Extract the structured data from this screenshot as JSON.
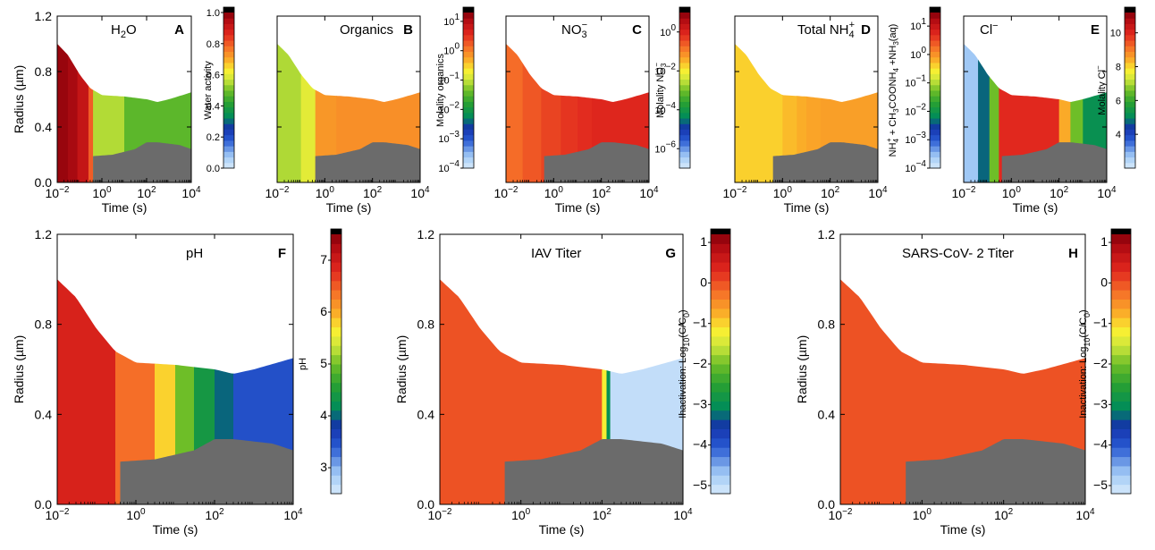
{
  "chart_data": [
    {
      "type": "heatmap",
      "panel": "A",
      "title": "H2O",
      "xlabel": "Time (s)",
      "ylabel": "Radius (µm)",
      "xscale": "log",
      "xlim": [
        0.01,
        10000
      ],
      "ylim": [
        0.0,
        1.2
      ],
      "xticks": [
        "10^-2",
        "10^0",
        "10^2",
        "10^4"
      ],
      "yticks": [
        "0.0",
        "0.4",
        "0.8",
        "1.2"
      ],
      "colorbar": {
        "label": "Water activity",
        "scale": "linear",
        "range": [
          0.0,
          1.0
        ],
        "ticks": [
          "0.0",
          "0.2",
          "0.4",
          "0.6",
          "0.8",
          "1.0"
        ]
      },
      "regions": [
        {
          "t_start": 0.01,
          "t_end": 0.03,
          "value": 0.98
        },
        {
          "t_start": 0.03,
          "t_end": 0.08,
          "value": 0.96
        },
        {
          "t_start": 0.08,
          "t_end": 0.25,
          "value": 0.92
        },
        {
          "t_start": 0.25,
          "t_end": 0.4,
          "value": 0.8
        },
        {
          "t_start": 0.4,
          "t_end": 10,
          "value": 0.55
        },
        {
          "t_start": 10,
          "t_end": 10000,
          "value": 0.48
        }
      ]
    },
    {
      "type": "heatmap",
      "panel": "B",
      "title": "Organics",
      "xlabel": "Time (s)",
      "ylabel": "",
      "xscale": "log",
      "xlim": [
        0.01,
        10000
      ],
      "ylim": [
        0.0,
        1.2
      ],
      "xticks": [
        "10^-2",
        "10^0",
        "10^2",
        "10^4"
      ],
      "yticks": [],
      "colorbar": {
        "label": "Molality organics",
        "scale": "log",
        "range": [
          0.0001,
          20
        ],
        "ticks": [
          "10^-4",
          "10^-3",
          "10^-2",
          "10^-1",
          "10^0",
          "10^1"
        ]
      },
      "regions": [
        {
          "t_start": 0.01,
          "t_end": 0.1,
          "value": 0.08
        },
        {
          "t_start": 0.1,
          "t_end": 0.4,
          "value": 0.15
        },
        {
          "t_start": 0.4,
          "t_end": 3,
          "value": 0.7
        },
        {
          "t_start": 3,
          "t_end": 10000,
          "value": 0.8
        }
      ]
    },
    {
      "type": "heatmap",
      "panel": "C",
      "title": "NO3-",
      "xlabel": "Time (s)",
      "ylabel": "",
      "xscale": "log",
      "xlim": [
        0.01,
        10000
      ],
      "ylim": [
        0.0,
        1.2
      ],
      "xticks": [
        "10^-2",
        "10^0",
        "10^2",
        "10^4"
      ],
      "yticks": [],
      "colorbar": {
        "label": "Molality NO3-",
        "scale": "log",
        "range": [
          1e-07,
          10
        ],
        "ticks": [
          "10^-6",
          "10^-4",
          "10^-2",
          "10^0"
        ]
      },
      "regions": [
        {
          "t_start": 0.01,
          "t_end": 0.05,
          "value": 0.18
        },
        {
          "t_start": 0.05,
          "t_end": 0.3,
          "value": 0.28
        },
        {
          "t_start": 0.3,
          "t_end": 2,
          "value": 0.42
        },
        {
          "t_start": 2,
          "t_end": 10,
          "value": 0.58
        },
        {
          "t_start": 10,
          "t_end": 40,
          "value": 0.7
        },
        {
          "t_start": 40,
          "t_end": 10000,
          "value": 0.85
        }
      ]
    },
    {
      "type": "heatmap",
      "panel": "D",
      "title": "Total NH4+",
      "xlabel": "Time (s)",
      "ylabel": "",
      "xscale": "log",
      "xlim": [
        0.01,
        10000
      ],
      "ylim": [
        0.0,
        1.2
      ],
      "xticks": [
        "10^-2",
        "10^0",
        "10^2",
        "10^4"
      ],
      "yticks": [],
      "colorbar": {
        "label": "NH4+ + CH3COONH4 + NH3(aq)",
        "scale": "log",
        "range": [
          0.0001,
          30
        ],
        "ticks": [
          "10^-4",
          "10^-3",
          "10^-2",
          "10^-1",
          "10^0",
          "10^1"
        ]
      },
      "regions": [
        {
          "t_start": 0.01,
          "t_end": 1,
          "value": 0.42
        },
        {
          "t_start": 1,
          "t_end": 4,
          "value": 0.55
        },
        {
          "t_start": 4,
          "t_end": 10,
          "value": 0.66
        },
        {
          "t_start": 10,
          "t_end": 40,
          "value": 0.75
        },
        {
          "t_start": 40,
          "t_end": 10000,
          "value": 0.82
        }
      ]
    },
    {
      "type": "heatmap",
      "panel": "E",
      "title": "Cl-",
      "xlabel": "Time (s)",
      "ylabel": "",
      "xscale": "log",
      "xlim": [
        0.01,
        10000
      ],
      "ylim": [
        0.0,
        1.2
      ],
      "xticks": [
        "10^-2",
        "10^0",
        "10^2",
        "10^4"
      ],
      "yticks": [],
      "colorbar": {
        "label": "Molality Cl-",
        "scale": "linear",
        "range": [
          2,
          11.2
        ],
        "ticks": [
          "4",
          "6",
          "8",
          "10"
        ]
      },
      "regions": [
        {
          "t_start": 0.01,
          "t_end": 0.04,
          "value": 0.08
        },
        {
          "t_start": 0.04,
          "t_end": 0.12,
          "value": 0.3
        },
        {
          "t_start": 0.12,
          "t_end": 0.3,
          "value": 0.5
        },
        {
          "t_start": 0.3,
          "t_end": 100,
          "value": 0.86
        },
        {
          "t_start": 100,
          "t_end": 300,
          "value": 0.7
        },
        {
          "t_start": 300,
          "t_end": 1000,
          "value": 0.5
        },
        {
          "t_start": 1000,
          "t_end": 10000,
          "value": 0.35
        }
      ]
    },
    {
      "type": "heatmap",
      "panel": "F",
      "title": "pH",
      "xlabel": "Time (s)",
      "ylabel": "Radius (µm)",
      "xscale": "log",
      "xlim": [
        0.01,
        10000
      ],
      "ylim": [
        0.0,
        1.2
      ],
      "xticks": [
        "10^-2",
        "10^0",
        "10^2",
        "10^4"
      ],
      "yticks": [
        "0.0",
        "0.4",
        "0.8",
        "1.2"
      ],
      "colorbar": {
        "label": "pH",
        "scale": "linear",
        "range": [
          2.5,
          7.5
        ],
        "ticks": [
          "3",
          "4",
          "5",
          "6",
          "7"
        ]
      },
      "regions": [
        {
          "t_start": 0.01,
          "t_end": 0.3,
          "value": 6.9
        },
        {
          "t_start": 0.3,
          "t_end": 3,
          "value": 6.4
        },
        {
          "t_start": 3,
          "t_end": 10,
          "value": 5.8
        },
        {
          "t_start": 10,
          "t_end": 30,
          "value": 5.0
        },
        {
          "t_start": 30,
          "t_end": 100,
          "value": 4.4
        },
        {
          "t_start": 100,
          "t_end": 300,
          "value": 4.0
        },
        {
          "t_start": 300,
          "t_end": 10000,
          "value": 3.5
        }
      ]
    },
    {
      "type": "heatmap",
      "panel": "G",
      "title": "IAV Titer",
      "xlabel": "Time (s)",
      "ylabel": "Radius (µm)",
      "xscale": "log",
      "xlim": [
        0.01,
        10000
      ],
      "ylim": [
        0.0,
        1.2
      ],
      "xticks": [
        "10^-2",
        "10^0",
        "10^2",
        "10^4"
      ],
      "yticks": [
        "0.0",
        "0.4",
        "0.8",
        "1.2"
      ],
      "colorbar": {
        "label": "Inactivation: Log10(C/C0)",
        "scale": "linear",
        "range": [
          -5.2,
          1.2
        ],
        "ticks": [
          "1",
          "0",
          "-1",
          "-2",
          "-3",
          "-4",
          "-5"
        ]
      },
      "regions": [
        {
          "t_start": 0.01,
          "t_end": 100,
          "value": 0.0
        },
        {
          "t_start": 100,
          "t_end": 130,
          "value": -1.2
        },
        {
          "t_start": 130,
          "t_end": 160,
          "value": -3.0
        },
        {
          "t_start": 160,
          "t_end": 10000,
          "value": -5.0
        }
      ]
    },
    {
      "type": "heatmap",
      "panel": "H",
      "title": "SARS-CoV- 2 Titer",
      "xlabel": "Time (s)",
      "ylabel": "Radius (µm)",
      "xscale": "log",
      "xlim": [
        0.01,
        10000
      ],
      "ylim": [
        0.0,
        1.2
      ],
      "xticks": [
        "10^-2",
        "10^0",
        "10^2",
        "10^4"
      ],
      "yticks": [
        "0.0",
        "0.4",
        "0.8",
        "1.2"
      ],
      "colorbar": {
        "label": "Inactivation: Log10(C/C0)",
        "scale": "linear",
        "range": [
          -5.2,
          1.2
        ],
        "ticks": [
          "1",
          "0",
          "-1",
          "-2",
          "-3",
          "-4",
          "-5"
        ]
      },
      "regions": [
        {
          "t_start": 0.01,
          "t_end": 10000,
          "value": 0.0
        }
      ]
    }
  ],
  "droplet": {
    "outer_radius": [
      [
        0.01,
        1.0
      ],
      [
        0.03,
        0.92
      ],
      [
        0.1,
        0.78
      ],
      [
        0.3,
        0.68
      ],
      [
        1,
        0.63
      ],
      [
        10,
        0.62
      ],
      [
        100,
        0.6
      ],
      [
        300,
        0.58
      ],
      [
        1000,
        0.6
      ],
      [
        10000,
        0.65
      ]
    ],
    "core_radius": [
      [
        0.4,
        0.19
      ],
      [
        3,
        0.2
      ],
      [
        30,
        0.24
      ],
      [
        100,
        0.29
      ],
      [
        300,
        0.29
      ],
      [
        3000,
        0.27
      ],
      [
        10000,
        0.24
      ]
    ],
    "core_start_time": 0.4,
    "core_color": "#6b6b6b"
  }
}
